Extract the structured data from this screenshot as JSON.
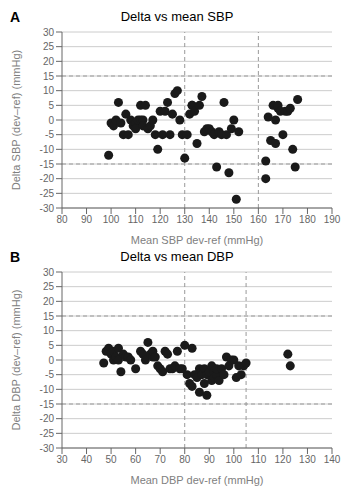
{
  "chart_data": [
    {
      "type": "scatter",
      "title": "Delta vs mean SBP",
      "annotations": [
        "A"
      ],
      "x_label": "Mean SBP dev-ref (mmHg)",
      "y_label": "Delta SBP (dev–ref) (mmHg)",
      "color": "#1a1a1a",
      "grid": "y",
      "xlim": [
        80,
        190
      ],
      "ylim": [
        -30,
        30
      ],
      "xticks": [
        80,
        90,
        100,
        110,
        120,
        130,
        140,
        150,
        160,
        170,
        180,
        190
      ],
      "yticks": [
        -30,
        -25,
        -20,
        -15,
        -10,
        -5,
        0,
        5,
        10,
        15,
        20,
        25,
        30
      ],
      "vlines": [
        130,
        160
      ],
      "hlines": [
        -15,
        15
      ],
      "x": [
        99,
        100,
        101,
        102,
        103,
        104,
        105,
        106,
        107,
        108,
        109,
        110,
        110,
        111,
        112,
        112,
        113,
        113,
        114,
        115,
        116,
        117,
        118,
        119,
        120,
        121,
        122,
        123,
        124,
        125,
        126,
        127,
        128,
        129,
        130,
        131,
        132,
        133,
        133,
        134,
        135,
        136,
        137,
        138,
        139,
        140,
        141,
        142,
        143,
        144,
        145,
        146,
        147,
        148,
        149,
        150,
        151,
        152,
        163,
        163,
        164,
        165,
        166,
        167,
        167,
        168,
        168,
        169,
        170,
        171,
        172,
        173,
        174,
        175,
        176
      ],
      "values": [
        -12,
        -1,
        -2,
        0,
        6,
        -1,
        -5,
        2,
        -5,
        0,
        -2,
        -1,
        -3,
        0,
        5,
        0,
        0,
        -2,
        5,
        -3,
        -2,
        0,
        -5,
        -10,
        3,
        -5,
        3,
        6,
        -5,
        2,
        9,
        10,
        0,
        -5,
        -13,
        -5,
        2,
        5,
        5,
        3,
        -8,
        5,
        8,
        -4,
        -3,
        -3,
        -4,
        -5,
        -16,
        -4,
        -5,
        6,
        -5,
        -18,
        -3,
        0,
        -27,
        -4,
        -20,
        -14,
        1,
        -7,
        5,
        -8,
        0,
        4,
        5,
        3,
        -5,
        3,
        3,
        4,
        -10,
        -16,
        7
      ]
    },
    {
      "type": "scatter",
      "title": "Delta vs mean DBP",
      "annotations": [
        "B"
      ],
      "x_label": "Mean DBP dev-ref (mmHg)",
      "y_label": "Delta DBP (dev–ref) (mmHg)",
      "color": "#1a1a1a",
      "grid": "y",
      "xlim": [
        30,
        140
      ],
      "ylim": [
        -30,
        30
      ],
      "xticks": [
        30,
        40,
        50,
        60,
        70,
        80,
        90,
        100,
        110,
        120,
        130,
        140
      ],
      "yticks": [
        -30,
        -25,
        -20,
        -15,
        -10,
        -5,
        0,
        5,
        10,
        15,
        20,
        25,
        30
      ],
      "vlines": [
        80,
        105
      ],
      "hlines": [
        -15,
        15
      ],
      "x": [
        47,
        48,
        49,
        50,
        51,
        51,
        52,
        53,
        53,
        54,
        55,
        56,
        57,
        58,
        60,
        62,
        63,
        64,
        65,
        66,
        67,
        67,
        68,
        69,
        70,
        71,
        72,
        73,
        74,
        75,
        76,
        77,
        78,
        79,
        80,
        81,
        82,
        83,
        83,
        84,
        85,
        85,
        86,
        86,
        87,
        87,
        88,
        88,
        89,
        89,
        90,
        90,
        91,
        91,
        92,
        92,
        93,
        93,
        94,
        95,
        96,
        97,
        98,
        99,
        100,
        101,
        102,
        103,
        104,
        105,
        122,
        123
      ],
      "values": [
        -1,
        3,
        4,
        2,
        3,
        0,
        1,
        4,
        0,
        -4,
        2,
        1,
        1,
        0,
        -3,
        3,
        2,
        0,
        6,
        2,
        1,
        3,
        1,
        -2,
        -3,
        -4,
        3,
        2,
        -3,
        -3,
        -2,
        3,
        -3,
        -3,
        5,
        -5,
        -8,
        -9,
        4,
        -5,
        -5,
        -6,
        -3,
        -11,
        -4,
        -5,
        -3,
        -8,
        -5,
        -12,
        -5,
        -4,
        -2,
        -7,
        -4,
        -6,
        -5,
        -3,
        -7,
        -3,
        -5,
        1,
        -2,
        0,
        0,
        -6,
        -2,
        -5,
        -2,
        -1,
        2,
        -2
      ]
    }
  ]
}
